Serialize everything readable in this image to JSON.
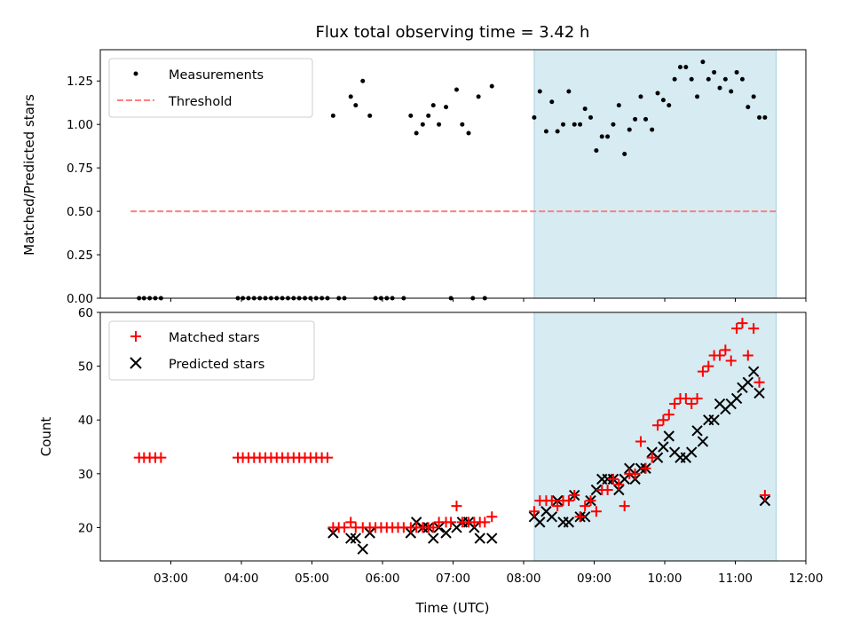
{
  "chart_data": [
    {
      "type": "scatter",
      "panel": "top",
      "title": "Flux total observing time = 3.42 h",
      "xlabel": "",
      "ylabel": "Matched/Predicted stars",
      "xlim": [
        2.0,
        12.0
      ],
      "ylim": [
        0.0,
        1.43
      ],
      "yticks": [
        "0.00",
        "0.25",
        "0.50",
        "0.75",
        "1.00",
        "1.25"
      ],
      "legend_position": "top-left",
      "legend": {
        "measurements": "Measurements",
        "threshold": "Threshold"
      },
      "shaded_region": {
        "x_start": 8.15,
        "x_end": 11.58,
        "color": "#add8e6"
      },
      "threshold": {
        "y": 0.5,
        "x_start": 2.43,
        "x_end": 11.58,
        "color": "#ff7f7f"
      },
      "series": [
        {
          "name": "Measurements",
          "points": [
            [
              2.55,
              0
            ],
            [
              2.62,
              0
            ],
            [
              2.7,
              0
            ],
            [
              2.78,
              0
            ],
            [
              2.86,
              0
            ],
            [
              3.95,
              0
            ],
            [
              4.02,
              0
            ],
            [
              4.1,
              0
            ],
            [
              4.18,
              0
            ],
            [
              4.26,
              0
            ],
            [
              4.34,
              0
            ],
            [
              4.42,
              0
            ],
            [
              4.5,
              0
            ],
            [
              4.58,
              0
            ],
            [
              4.66,
              0
            ],
            [
              4.74,
              0
            ],
            [
              4.82,
              0
            ],
            [
              4.9,
              0
            ],
            [
              4.98,
              0
            ],
            [
              5.06,
              0
            ],
            [
              5.14,
              0
            ],
            [
              5.22,
              0
            ],
            [
              5.38,
              0
            ],
            [
              5.46,
              0
            ],
            [
              5.3,
              1.05
            ],
            [
              5.55,
              1.16
            ],
            [
              5.62,
              1.11
            ],
            [
              5.72,
              1.25
            ],
            [
              5.82,
              1.05
            ],
            [
              5.9,
              0
            ],
            [
              5.98,
              0
            ],
            [
              6.06,
              0
            ],
            [
              6.14,
              0
            ],
            [
              6.3,
              0
            ],
            [
              6.4,
              1.05
            ],
            [
              6.48,
              0.95
            ],
            [
              6.57,
              1.0
            ],
            [
              6.65,
              1.05
            ],
            [
              6.72,
              1.11
            ],
            [
              6.8,
              1.0
            ],
            [
              6.9,
              1.1
            ],
            [
              6.97,
              0
            ],
            [
              7.05,
              1.2
            ],
            [
              7.13,
              1.0
            ],
            [
              7.22,
              0.95
            ],
            [
              7.28,
              0
            ],
            [
              7.36,
              1.16
            ],
            [
              7.45,
              0
            ],
            [
              7.55,
              1.22
            ],
            [
              8.15,
              1.04
            ],
            [
              8.23,
              1.19
            ],
            [
              8.32,
              0.96
            ],
            [
              8.4,
              1.13
            ],
            [
              8.48,
              0.96
            ],
            [
              8.56,
              1.0
            ],
            [
              8.64,
              1.19
            ],
            [
              8.72,
              1.0
            ],
            [
              8.8,
              1.0
            ],
            [
              8.87,
              1.09
            ],
            [
              8.95,
              1.04
            ],
            [
              9.03,
              0.85
            ],
            [
              9.11,
              0.93
            ],
            [
              9.19,
              0.93
            ],
            [
              9.27,
              1.0
            ],
            [
              9.35,
              1.11
            ],
            [
              9.43,
              0.83
            ],
            [
              9.5,
              0.97
            ],
            [
              9.58,
              1.03
            ],
            [
              9.66,
              1.16
            ],
            [
              9.73,
              1.03
            ],
            [
              9.82,
              0.97
            ],
            [
              9.9,
              1.18
            ],
            [
              9.98,
              1.14
            ],
            [
              10.06,
              1.11
            ],
            [
              10.14,
              1.26
            ],
            [
              10.22,
              1.33
            ],
            [
              10.3,
              1.33
            ],
            [
              10.38,
              1.26
            ],
            [
              10.46,
              1.16
            ],
            [
              10.54,
              1.36
            ],
            [
              10.62,
              1.26
            ],
            [
              10.7,
              1.3
            ],
            [
              10.78,
              1.21
            ],
            [
              10.86,
              1.26
            ],
            [
              10.94,
              1.19
            ],
            [
              11.02,
              1.3
            ],
            [
              11.1,
              1.26
            ],
            [
              11.18,
              1.1
            ],
            [
              11.26,
              1.16
            ],
            [
              11.34,
              1.04
            ],
            [
              11.42,
              1.04
            ]
          ]
        },
        {
          "name": "Threshold",
          "points": [
            [
              2.43,
              0.5
            ],
            [
              11.58,
              0.5
            ]
          ]
        }
      ]
    },
    {
      "type": "scatter",
      "panel": "bottom",
      "title": "",
      "xlabel": "Time (UTC)",
      "ylabel": "Count",
      "xlim": [
        2.0,
        12.0
      ],
      "ylim": [
        13.8,
        60.0
      ],
      "yticks": [
        "20",
        "30",
        "40",
        "50",
        "60"
      ],
      "xticks": [
        "03:00",
        "04:00",
        "05:00",
        "06:00",
        "07:00",
        "08:00",
        "09:00",
        "10:00",
        "11:00",
        "12:00"
      ],
      "legend_position": "top-left",
      "legend": {
        "matched": "Matched stars",
        "predicted": "Predicted stars"
      },
      "shaded_region": {
        "x_start": 8.15,
        "x_end": 11.58,
        "color": "#add8e6"
      },
      "series": [
        {
          "name": "Matched stars",
          "marker": "plus",
          "color": "#ff0000",
          "points": [
            [
              2.55,
              33
            ],
            [
              2.62,
              33
            ],
            [
              2.7,
              33
            ],
            [
              2.78,
              33
            ],
            [
              2.86,
              33
            ],
            [
              3.95,
              33
            ],
            [
              4.02,
              33
            ],
            [
              4.1,
              33
            ],
            [
              4.18,
              33
            ],
            [
              4.26,
              33
            ],
            [
              4.34,
              33
            ],
            [
              4.42,
              33
            ],
            [
              4.5,
              33
            ],
            [
              4.58,
              33
            ],
            [
              4.66,
              33
            ],
            [
              4.74,
              33
            ],
            [
              4.82,
              33
            ],
            [
              4.9,
              33
            ],
            [
              4.98,
              33
            ],
            [
              5.06,
              33
            ],
            [
              5.14,
              33
            ],
            [
              5.22,
              33
            ],
            [
              5.3,
              20
            ],
            [
              5.38,
              20
            ],
            [
              5.46,
              20
            ],
            [
              5.55,
              21
            ],
            [
              5.62,
              20
            ],
            [
              5.72,
              20
            ],
            [
              5.82,
              20
            ],
            [
              5.9,
              20
            ],
            [
              5.98,
              20
            ],
            [
              6.06,
              20
            ],
            [
              6.14,
              20
            ],
            [
              6.22,
              20
            ],
            [
              6.3,
              20
            ],
            [
              6.4,
              20
            ],
            [
              6.48,
              20
            ],
            [
              6.57,
              20
            ],
            [
              6.65,
              20
            ],
            [
              6.72,
              20
            ],
            [
              6.8,
              21
            ],
            [
              6.9,
              21
            ],
            [
              6.97,
              21
            ],
            [
              7.05,
              24
            ],
            [
              7.13,
              21
            ],
            [
              7.22,
              21
            ],
            [
              7.3,
              21
            ],
            [
              7.38,
              21
            ],
            [
              7.45,
              21
            ],
            [
              7.55,
              22
            ],
            [
              8.15,
              23
            ],
            [
              8.23,
              25
            ],
            [
              8.32,
              25
            ],
            [
              8.4,
              25
            ],
            [
              8.48,
              24
            ],
            [
              8.56,
              25
            ],
            [
              8.64,
              25
            ],
            [
              8.72,
              26
            ],
            [
              8.8,
              22
            ],
            [
              8.87,
              24
            ],
            [
              8.95,
              25
            ],
            [
              9.03,
              23
            ],
            [
              9.11,
              27
            ],
            [
              9.19,
              27
            ],
            [
              9.27,
              29
            ],
            [
              9.35,
              28
            ],
            [
              9.43,
              24
            ],
            [
              9.5,
              30
            ],
            [
              9.58,
              30
            ],
            [
              9.66,
              36
            ],
            [
              9.73,
              31
            ],
            [
              9.82,
              33
            ],
            [
              9.9,
              39
            ],
            [
              9.98,
              40
            ],
            [
              10.06,
              41
            ],
            [
              10.14,
              43
            ],
            [
              10.22,
              44
            ],
            [
              10.3,
              44
            ],
            [
              10.38,
              43
            ],
            [
              10.46,
              44
            ],
            [
              10.54,
              49
            ],
            [
              10.62,
              50
            ],
            [
              10.7,
              52
            ],
            [
              10.78,
              52
            ],
            [
              10.86,
              53
            ],
            [
              10.94,
              51
            ],
            [
              11.02,
              57
            ],
            [
              11.1,
              58
            ],
            [
              11.18,
              52
            ],
            [
              11.26,
              57
            ],
            [
              11.34,
              47
            ],
            [
              11.42,
              26
            ]
          ]
        },
        {
          "name": "Predicted stars",
          "marker": "x",
          "color": "#000000",
          "points": [
            [
              5.3,
              19
            ],
            [
              5.55,
              18
            ],
            [
              5.62,
              18
            ],
            [
              5.72,
              16
            ],
            [
              5.82,
              19
            ],
            [
              6.4,
              19
            ],
            [
              6.48,
              21
            ],
            [
              6.57,
              20
            ],
            [
              6.65,
              20
            ],
            [
              6.72,
              18
            ],
            [
              6.8,
              20
            ],
            [
              6.9,
              19
            ],
            [
              7.05,
              20
            ],
            [
              7.13,
              21
            ],
            [
              7.22,
              21
            ],
            [
              7.3,
              20
            ],
            [
              7.38,
              18
            ],
            [
              7.55,
              18
            ],
            [
              8.15,
              22
            ],
            [
              8.23,
              21
            ],
            [
              8.32,
              23
            ],
            [
              8.4,
              22
            ],
            [
              8.48,
              25
            ],
            [
              8.56,
              21
            ],
            [
              8.64,
              21
            ],
            [
              8.72,
              26
            ],
            [
              8.8,
              22
            ],
            [
              8.87,
              22
            ],
            [
              8.95,
              25
            ],
            [
              9.03,
              27
            ],
            [
              9.11,
              29
            ],
            [
              9.19,
              29
            ],
            [
              9.27,
              29
            ],
            [
              9.35,
              27
            ],
            [
              9.43,
              29
            ],
            [
              9.5,
              31
            ],
            [
              9.58,
              29
            ],
            [
              9.66,
              31
            ],
            [
              9.73,
              31
            ],
            [
              9.82,
              34
            ],
            [
              9.9,
              33
            ],
            [
              9.98,
              35
            ],
            [
              10.06,
              37
            ],
            [
              10.14,
              34
            ],
            [
              10.22,
              33
            ],
            [
              10.3,
              33
            ],
            [
              10.38,
              34
            ],
            [
              10.46,
              38
            ],
            [
              10.54,
              36
            ],
            [
              10.62,
              40
            ],
            [
              10.7,
              40
            ],
            [
              10.78,
              43
            ],
            [
              10.86,
              42
            ],
            [
              10.94,
              43
            ],
            [
              11.02,
              44
            ],
            [
              11.1,
              46
            ],
            [
              11.18,
              47
            ],
            [
              11.26,
              49
            ],
            [
              11.34,
              45
            ],
            [
              11.42,
              25
            ]
          ]
        }
      ]
    }
  ]
}
